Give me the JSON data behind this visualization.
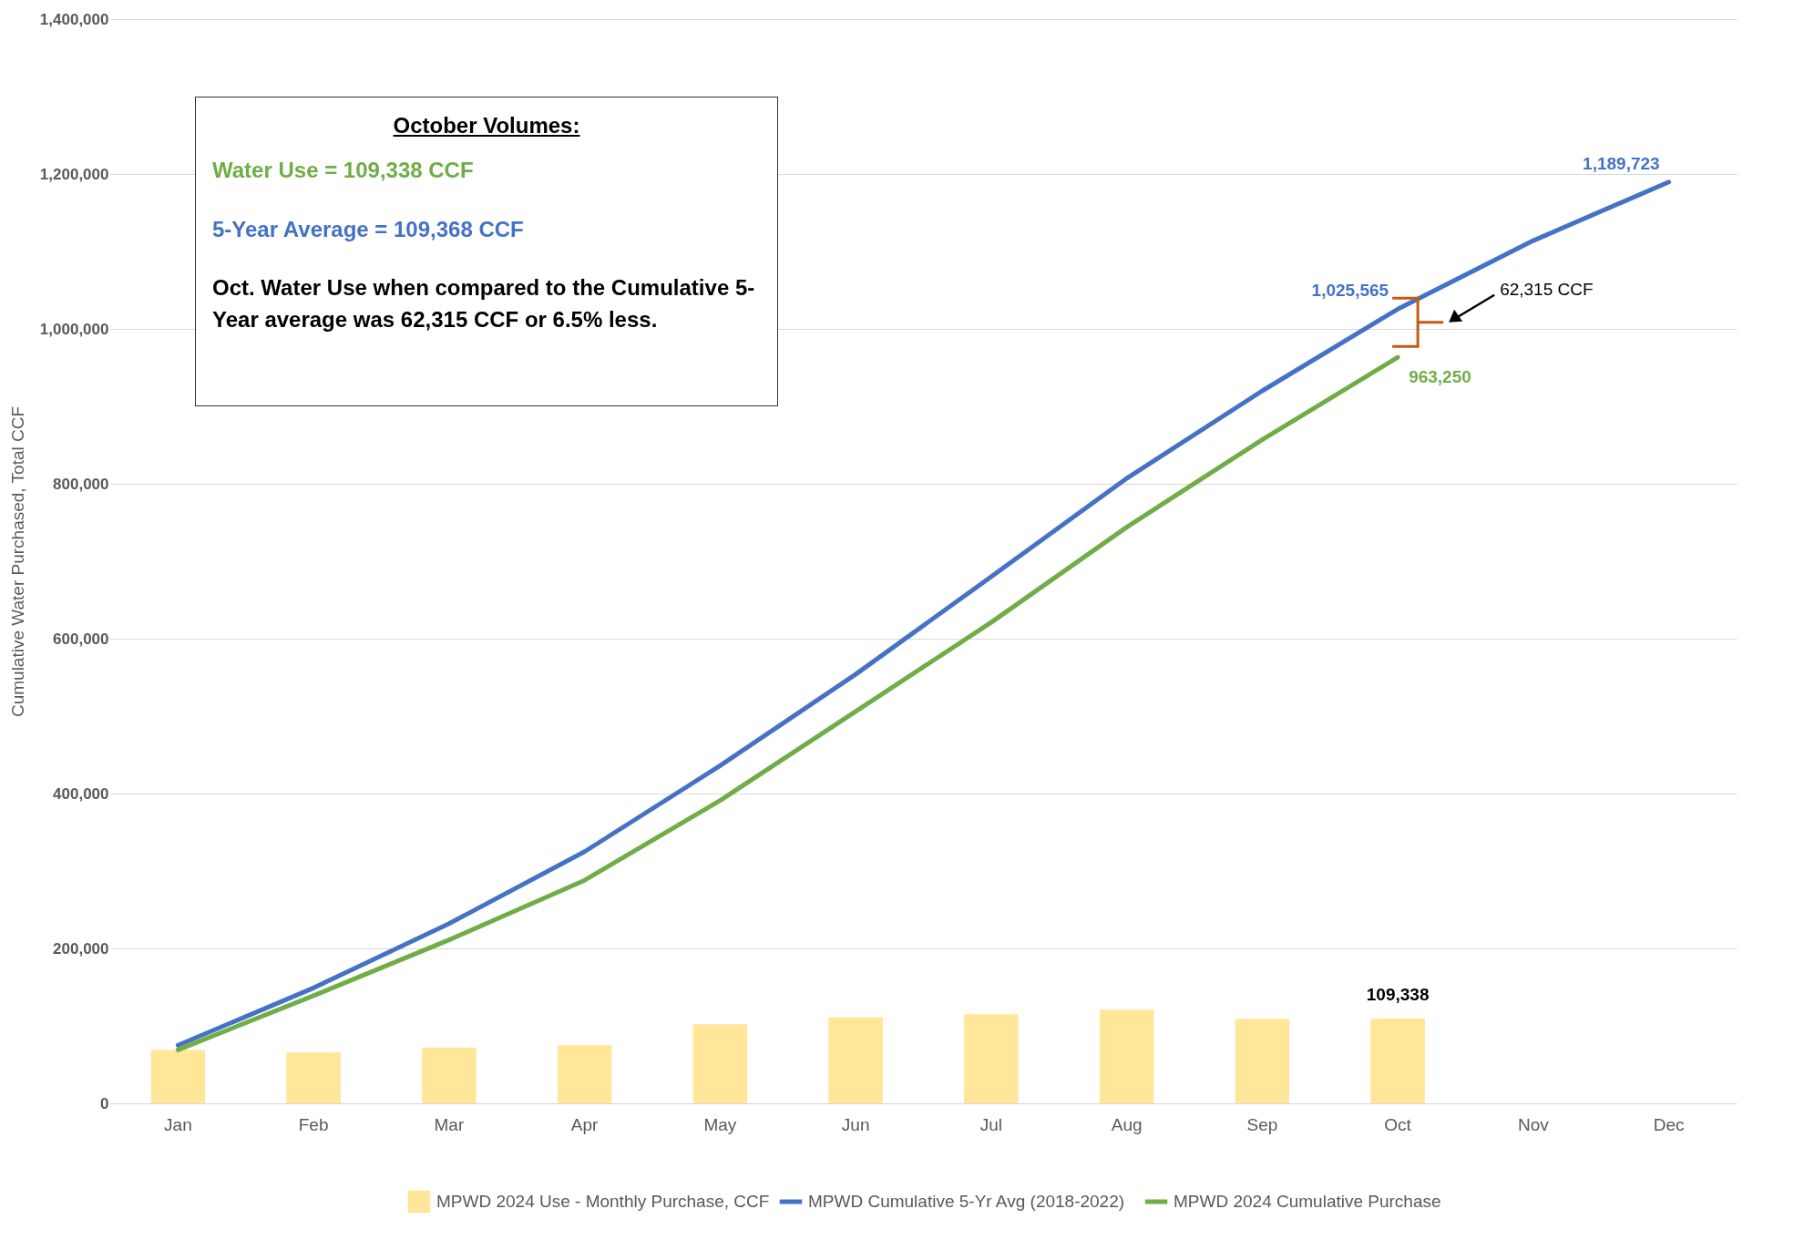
{
  "chart_data": {
    "type": "bar",
    "ylabel": "Cumulative Water Purchased, Total CCF",
    "categories": [
      "Jan",
      "Feb",
      "Mar",
      "Apr",
      "May",
      "Jun",
      "Jul",
      "Aug",
      "Sep",
      "Oct",
      "Nov",
      "Dec"
    ],
    "series": [
      {
        "name": "MPWD 2024 Use - Monthly Purchase, CCF",
        "type": "bar",
        "color": "#ffe699",
        "values": [
          69000,
          66000,
          72000,
          75000,
          102000,
          111000,
          115000,
          121000,
          109000,
          109338,
          null,
          null
        ],
        "value_labels": [
          null,
          null,
          null,
          null,
          null,
          null,
          null,
          null,
          null,
          "109,338",
          null,
          null
        ]
      },
      {
        "name": "MPWD Cumulative 5-Yr Avg (2018-2022)",
        "type": "line",
        "color": "#4472c4",
        "values": [
          75000,
          149000,
          232000,
          325000,
          436000,
          554000,
          680000,
          807000,
          920000,
          1025565,
          1114000,
          1189723
        ],
        "value_labels": [
          null,
          null,
          null,
          null,
          null,
          null,
          null,
          null,
          null,
          "1,025,565",
          null,
          "1,189,723"
        ]
      },
      {
        "name": "MPWD 2024 Cumulative Purchase",
        "type": "line",
        "color": "#70ad47",
        "values": [
          69000,
          139000,
          211000,
          288000,
          391000,
          506000,
          621000,
          744000,
          857000,
          963250,
          null,
          null
        ],
        "value_labels": [
          null,
          null,
          null,
          null,
          null,
          null,
          null,
          null,
          null,
          "963,250",
          null,
          null
        ]
      }
    ],
    "ylim": [
      0,
      1400000
    ],
    "yticks": [
      0,
      {
        "value": 200000,
        "label": "200,000"
      },
      {
        "value": 400000,
        "label": "400,000"
      },
      {
        "value": 600000,
        "label": "600,000"
      },
      {
        "value": 800000,
        "label": "800,000"
      },
      {
        "value": 1000000,
        "label": "1,000,000"
      },
      {
        "value": 1200000,
        "label": "1,200,000"
      },
      {
        "value": 1400000,
        "label": "1,400,000"
      }
    ],
    "grid": "y",
    "legend": "bottom",
    "annotations": [
      "October Volumes:",
      "Water Use = 109,338 CCF",
      "5-Year Average = 109,368 CCF",
      "Oct. Water Use when compared to the Cumulative 5-Year average was 62,315 CCF or 6.5% less.",
      "62,315 CCF"
    ]
  }
}
